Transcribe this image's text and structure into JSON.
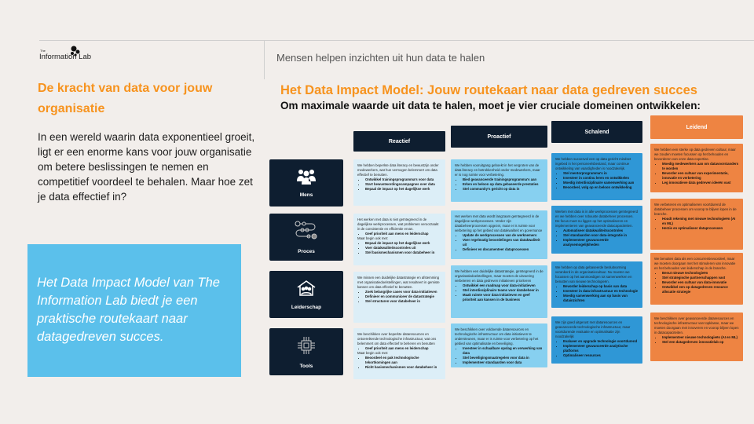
{
  "header": {
    "logo_small": "The",
    "logo": "Information Lab",
    "tagline": "Mensen helpen inzichten uit hun data te halen"
  },
  "left": {
    "title": "De kracht van data voor jouw organisatie",
    "body": "In een wereld waarin data exponentieel groeit, ligt er een enorme kans voor jouw organisatie om betere beslissingen te nemen en competitief voordeel te behalen. Maar hoe zet je data effectief in?",
    "callout": "Het Data Impact Model van The Information Lab biedt je een praktische routekaart naar datagedreven succes."
  },
  "model": {
    "title": "Het Data Impact Model: Jouw routekaart naar data gedreven succes",
    "subtitle": "Om maximale waarde uit data te halen, moet je vier cruciale domeinen ontwikkelen:",
    "columns": [
      "Reactief",
      "Proactief",
      "Schalend",
      "Leidend"
    ],
    "column_colors": [
      "#0e1e30",
      "#0e1e30",
      "#0e1e30",
      "#ee8442"
    ],
    "rows": [
      {
        "label": "Mens",
        "icon": "people-icon",
        "cells": [
          {
            "text": "We hebben beperkte data literacy en bewustzijn onder medewerkers, wat hun vermogen belemmert om data effectief te benutten.",
            "bullets": [
              "Ontwikkel trainingsprogramma's voor data",
              "Start bewustwordingscampagnes over data",
              "Bepaal de impact op het dagelijkse werk"
            ]
          },
          {
            "text": "We hebben vooruitgang geboekt in het vergroten van de data literacy en betrokkenheid onder medewerkers, maar er is nog ruimte voor verbetering.",
            "bullets": [
              "Bied geavanceerde trainingsprogramma's aan",
              "Erken en beloon op data gebaseerde prestaties",
              "Stel community's gericht op data in"
            ]
          },
          {
            "text": "We hebben succesvol een op data gericht mindset ingebed in het personeelsbestand, maar continue ontwikkeling van vaardigheden is noodzakelijk.",
            "bullets": [
              "Stel mentorprogramma's in",
              "Investeer in continu leren en ontwikkelen",
              "Moedig interdisciplinaire samenwerking aan",
              "Beoordeel, volg op en beloon ontwikkeling"
            ]
          },
          {
            "text": "We hebben een sterke op data gedreven cultuur, maar we zouden moeten focussen op het behouden en bevorderen van onze data-expertise.",
            "bullets": [
              "Moedig medewerkers aan om datavoorstanders te worden",
              "Bevorder een cultuur van experimentatie, innovatie en verbetering",
              "Leg innovatieve data gedreven ideeën vast"
            ]
          }
        ]
      },
      {
        "label": "Proces",
        "icon": "process-path-icon",
        "cells": [
          {
            "text": "Het werken met data is niet geïntegreerd in de dagelijkse werkprocessen, wat problemen veroorzaakt in de consistentie en efficiëntie ervan.",
            "bullets": [
              "Geef prioriteit aan mens en leiderschap"
            ],
            "text2": "Maar begin ook met:",
            "bullets2": [
              "Bepaal de impact op het dagelijkse werk",
              "Voer datakwaliteitscontroles uit",
              "Stel basismechanismen voor databeheer in"
            ]
          },
          {
            "text": "Het werken met data wordt langzaam geïntegreerd in de dagelijkse werkprocessen. Verder zijn databeheerprocessen opgezet, maar er is ruimte voor verbetering op het gebied van datakwaliteit en governance",
            "bullets": [
              "Update de werkprocessen van de werknemers",
              "Voer regelmatig beoordelingen van datakwaliteit uit",
              "Definieer en documenteer dataprocessen"
            ]
          },
          {
            "text": "Werken met data is in alle werkprocessen geïntegreerd en we hebben over robuuste databeheer processen. De focus moet nu liggen op het optimaliseren en implementeren van geavanceerde datacapaciteiten.",
            "bullets": [
              "Automatiseer datakwaliteitscontroles",
              "Stel standaarden voor data-integratie in",
              "Implementeer geavanceerde analysemogelijkheden"
            ]
          },
          {
            "text": "We verbeteren en optimaliseren voortdurend de databeheer processen om voorop te blijven lopen in de branche.",
            "bullets": [
              "Houdt rekening met nieuwe technologieën (AI en ML)",
              "Herzie en optimaliseer dataprocessen"
            ]
          }
        ]
      },
      {
        "label": "Leiderschap",
        "icon": "house-people-icon",
        "cells": [
          {
            "text": "We missen een duidelijke datastrategie en afstemming met organisatiedoelstellingen, wat resulteert in gemiste kansen om data effectief te benutten.",
            "bullets": [
              "Zoek belangrijke cases voor data-initiatieven",
              "Definieer en communiceer de datastrategie",
              "Stel structuren voor databeheer in"
            ]
          },
          {
            "text": "We hebben een duidelijke datastrategie, geïntegreerd in de organisatiedoelstellingen, maar moeten de uitvoering verbeteren en data gedreven initiatieven prioriteren",
            "bullets": [
              "Ontwikkel een roadmap voor data-initiatieven",
              "Stel interdisciplinaire teams voor databeheer in",
              "Maak ruimte voor data-initiatieven en geef prioriteit aan kansen in de business"
            ]
          },
          {
            "text": "We hebben op data gebaseerde besluitvorming verankerd in de organisatiecultuur. Nu moeten we focussen op het aanmoedigen tot samenwerken en benutten van nieuwe technologieën.",
            "bullets": [
              "Bevorder leiderschap op basis van data",
              "Investeer in data-infrastructuur en technologie",
              "Moedig samenwerking aan op basis van datainzichten"
            ]
          },
          {
            "text": "We benutten data als een concurrentievoordeel, maar we moeten doorgaan met het stimuleren van innovatie en het behouden van leiderschap in de branche.",
            "bullets": [
              "Benut nieuwe technologieën",
              "Stel strategische partnerschappen vast",
              "Bevorder een cultuur van data-innovatie",
              "Ontwikkel een op datagedreven resource allocatie strategie"
            ]
          }
        ]
      },
      {
        "label": "Tools",
        "icon": "chip-icon",
        "cells": [
          {
            "text": "We beschikken over beperkte dataresources en ontoereikende technologische infrastructuur, wat ons belemmert om data effectief te beheren en benutten",
            "bullets": [
              "Geef prioriteit aan mens en leiderschap"
            ],
            "text2": "Maar begin ook met:",
            "bullets2": [
              "Beoordeel en pak technologische tekortkomingen aan",
              "Richt basismechanismen voor databeheer in"
            ]
          },
          {
            "text": "We beschikken over voldoende dataresources en technologische infrastructuur om data initiatieven te ondersteunen, maar er is ruimte voor verbetering op het gebied van optimalisatie en beveiliging.",
            "bullets": [
              "Investeer in schaalbare opslag en verwerking van data",
              "Stel beveiligingsmaatregelen voor data in",
              "Implementeer standaarden voor data"
            ]
          },
          {
            "text": "We zijn goed uitgerust met dataresources en geavanceerde technologische infrastructuur, maar voortdurende evaluatie en optimalisatie zijn noodzakelijk",
            "bullets": [
              "Evalueer en upgrade technologie voortdurend",
              "Implementeer geavanceerde analytische platforms",
              "Optimaliseer resources"
            ]
          },
          {
            "text": "We beschikken over geavanceerde dataresources en technologische infrastructuur van topklasse, maar we moeten doorgaan met innoveren en voorop blijven lopen in datacapaciteiten.",
            "bullets": [
              "Implementeer nieuwe technologieën (AI en ML)",
              "Stel een datagedreven innovatielab op"
            ]
          }
        ]
      }
    ]
  }
}
